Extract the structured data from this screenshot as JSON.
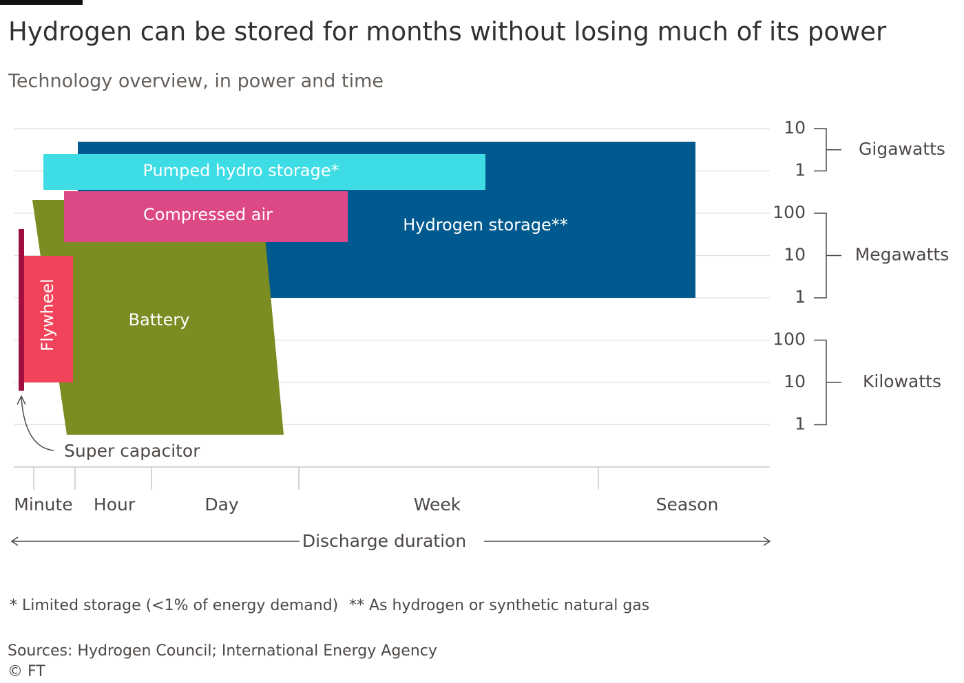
{
  "header": {
    "title": "Hydrogen can be stored for months without losing much of its power",
    "subtitle": "Technology overview, in power and time"
  },
  "power_axis": [
    {
      "label": "Gigawatts",
      "ticks": [
        10,
        1
      ]
    },
    {
      "label": "Megawatts",
      "ticks": [
        100,
        10,
        1
      ]
    },
    {
      "label": "Kilowatts",
      "ticks": [
        100,
        10,
        1
      ]
    }
  ],
  "duration_axis": {
    "labels": [
      "Minute",
      "Hour",
      "Day",
      "Week",
      "Season"
    ],
    "title": "Discharge duration"
  },
  "technologies": {
    "hydrogen": "Hydrogen storage**",
    "pumped_hydro": "Pumped hydro storage*",
    "compressed_air": "Compressed air",
    "battery": "Battery",
    "flywheel": "Flywheel",
    "super_capacitor": "Super capacitor"
  },
  "footnotes": [
    "* Limited storage (<1% of energy demand)",
    "** As hydrogen or synthetic natural gas"
  ],
  "source": "Sources: Hydrogen Council; International Energy Agency",
  "copyright": "© FT"
}
